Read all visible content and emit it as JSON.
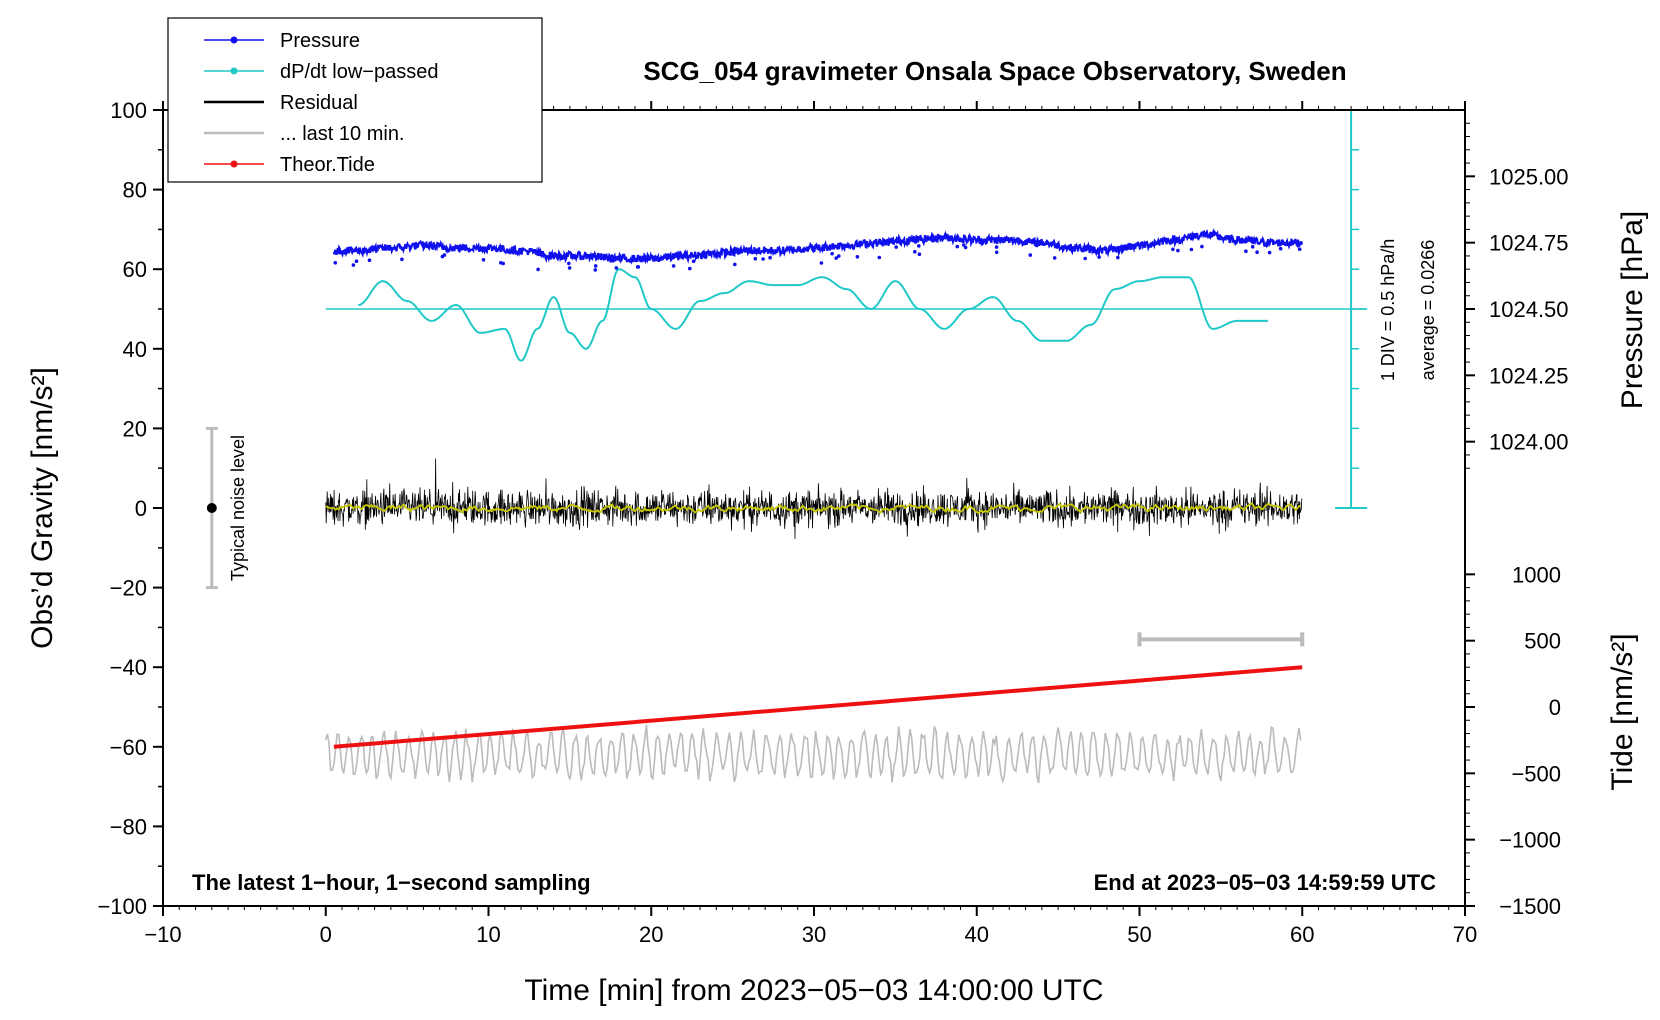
{
  "chart_data": {
    "type": "line",
    "title": "SCG_054 gravimeter Onsala Space Observatory, Sweden",
    "xlabel": "Time [min] from 2023−05−03 14:00:00 UTC",
    "ylabel_left": "Obs’d Gravity [nm/s²]",
    "ylabel_right_top": "Pressure [hPa]",
    "ylabel_right_bottom": "Tide [nm/s²]",
    "xlim": [
      -10,
      70
    ],
    "ylim": [
      -100,
      100
    ],
    "x_ticks": [
      -10,
      0,
      10,
      20,
      30,
      40,
      50,
      60,
      70
    ],
    "x_tick_labels": [
      "−10",
      "0",
      "10",
      "20",
      "30",
      "40",
      "50",
      "60",
      "70"
    ],
    "y_ticks": [
      -100,
      -80,
      -60,
      -40,
      -20,
      0,
      20,
      40,
      60,
      80,
      100
    ],
    "y_tick_labels": [
      "−100",
      "−80",
      "−60",
      "−40",
      "−20",
      "0",
      "20",
      "40",
      "60",
      "80",
      "100"
    ],
    "pressure_axis": {
      "ticks": [
        1024.0,
        1024.25,
        1024.5,
        1024.75,
        1025.0
      ],
      "tick_labels": [
        "1024.00",
        "1024.25",
        "1024.50",
        "1024.75",
        "1025.00"
      ],
      "map_gravity": {
        "p0": 1024.5,
        "g0": 50,
        "nm_per_hpa": 66.67
      }
    },
    "tide_axis": {
      "ticks": [
        -1500,
        -1000,
        -500,
        0,
        500,
        1000
      ],
      "tick_labels": [
        "−1500",
        "−1000",
        "−500",
        "0",
        "500",
        "1000"
      ],
      "map_gravity": {
        "t0": 0,
        "g0": -50,
        "nm_per_unit": 0.03333
      }
    },
    "legend": [
      {
        "label": "Pressure",
        "color": "#1010ee",
        "marker": true
      },
      {
        "label": "dP/dt low−passed",
        "color": "#20c8c8",
        "marker": true
      },
      {
        "label": "Residual",
        "color": "#000000",
        "marker": false
      },
      {
        "label": "... last 10 min.",
        "color": "#bbbbbb",
        "marker": false
      },
      {
        "label": "Theor.Tide",
        "color": "#ee1111",
        "marker": true
      }
    ],
    "series": [
      {
        "name": "Pressure",
        "color": "#1010ee",
        "x": [
          0.5,
          2,
          4,
          6,
          8,
          10,
          12,
          14,
          16,
          18,
          20,
          22,
          24,
          26,
          28,
          30,
          32,
          34,
          36,
          38,
          40,
          42,
          44,
          46,
          48,
          50,
          52,
          54,
          56,
          58,
          60
        ],
        "y": [
          1024.72,
          1024.72,
          1024.73,
          1024.74,
          1024.73,
          1024.73,
          1024.72,
          1024.7,
          1024.7,
          1024.69,
          1024.69,
          1024.7,
          1024.71,
          1024.72,
          1024.72,
          1024.73,
          1024.74,
          1024.75,
          1024.76,
          1024.77,
          1024.76,
          1024.76,
          1024.75,
          1024.73,
          1024.72,
          1024.74,
          1024.76,
          1024.78,
          1024.76,
          1024.75,
          1024.75
        ]
      },
      {
        "name": "dP/dt low−passed",
        "color": "#20c8c8",
        "x": [
          2,
          3.5,
          5,
          6.5,
          8,
          9.5,
          11,
          12,
          13,
          14,
          15,
          16,
          17,
          18,
          19,
          20,
          21.5,
          23,
          24.5,
          26,
          27.5,
          29,
          30.5,
          32,
          33.5,
          35,
          36.5,
          38,
          39.5,
          41,
          42.5,
          44,
          45.5,
          47,
          48.5,
          50,
          51.5,
          53,
          54.5,
          56,
          58
        ],
        "y": [
          51,
          57,
          52,
          47,
          51,
          44,
          45,
          37,
          45,
          53,
          44,
          40,
          47,
          60,
          58,
          50,
          45,
          52,
          54,
          57,
          56,
          56,
          58,
          55,
          50,
          57,
          50,
          45,
          50,
          53,
          47,
          42,
          42,
          46,
          55,
          57,
          58,
          58,
          45,
          47,
          47
        ]
      },
      {
        "name": "Residual",
        "color": "#000000",
        "x_start": 0,
        "x_end": 60,
        "amplitude": 4.5
      },
      {
        "name": "... last 10 min.",
        "color": "#bbbbbb",
        "x_start": 0,
        "x_end": 60,
        "center": -62,
        "amplitude": 6
      },
      {
        "name": "Theor.Tide",
        "color": "#ee1111",
        "x": [
          0.5,
          60
        ],
        "y": [
          -300,
          300
        ]
      }
    ],
    "noise_level": {
      "label": "Typical noise level",
      "x": -7,
      "y_min": -20,
      "y_max": 20
    },
    "scale_bar": {
      "x_min": 50,
      "x_max": 60,
      "y": -33
    },
    "pressure_rate_scale": {
      "label_div": "1 DIV = 0.5 hPa/h",
      "label_avg": "average = 0.0266",
      "x": 63,
      "y_min": 0,
      "y_max": 100,
      "zero_y": 50
    },
    "note_left": "The latest 1−hour, 1−second sampling",
    "note_right": "End at 2023−05−03 14:59:59 UTC"
  }
}
